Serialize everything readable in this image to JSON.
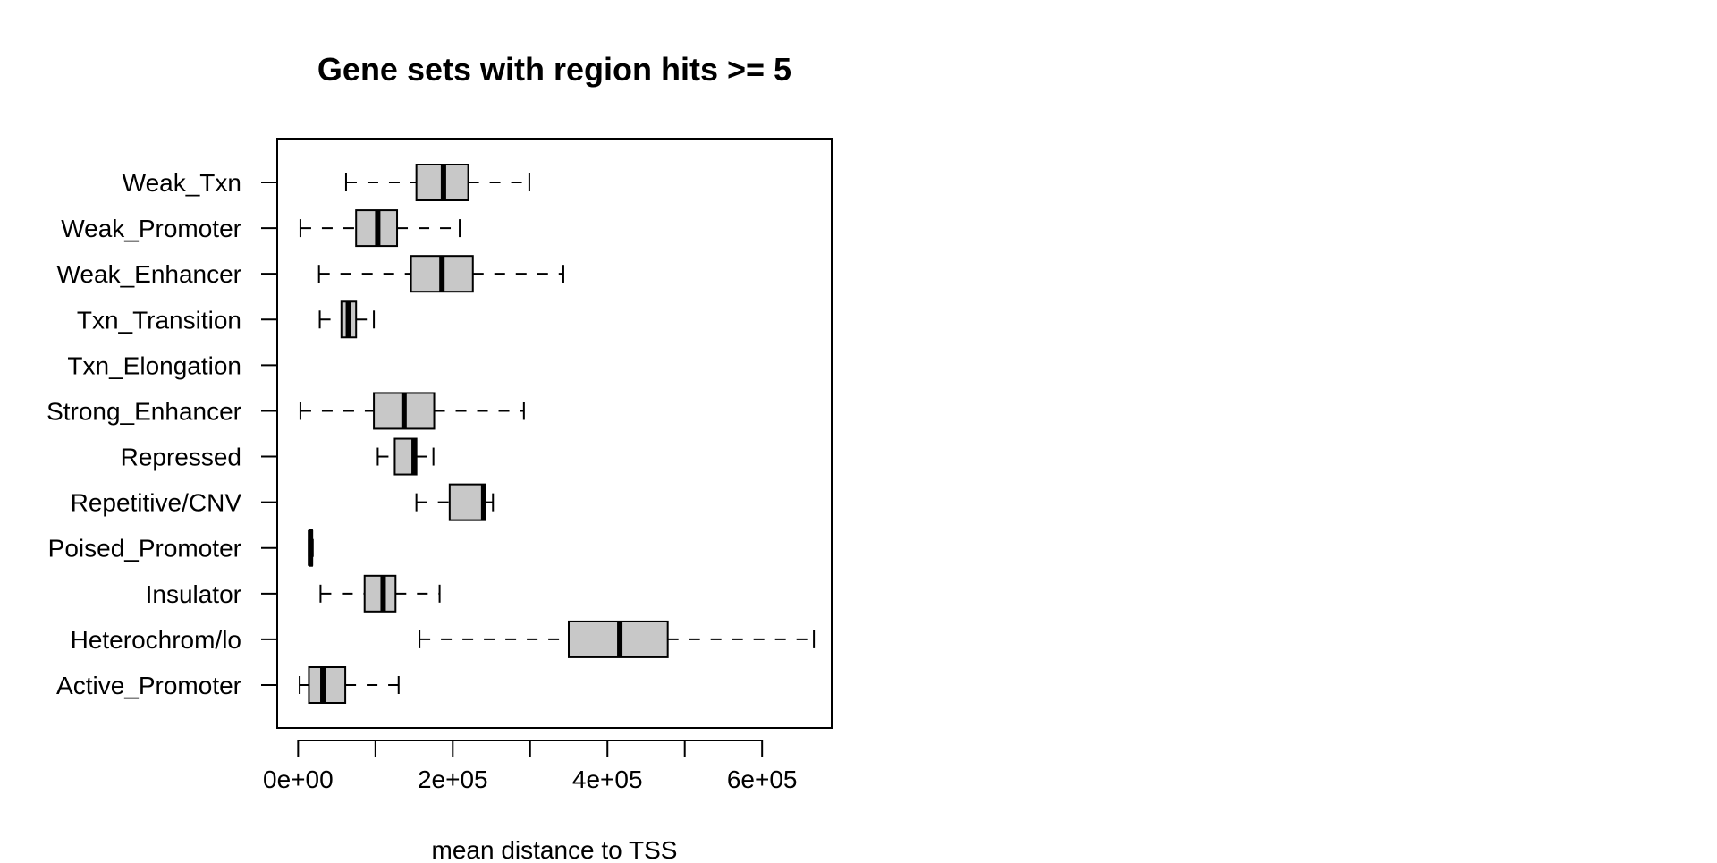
{
  "chart_data": {
    "type": "boxplot",
    "orientation": "horizontal",
    "title": "Gene sets with region hits >= 5",
    "xlabel": "mean distance to TSS",
    "ylabel": "",
    "xlim": [
      -27000,
      690000
    ],
    "x_ticks": [
      0,
      100000,
      200000,
      300000,
      400000,
      500000,
      600000
    ],
    "x_tick_labels": [
      "0e+00",
      "",
      "2e+05",
      "",
      "4e+05",
      "",
      "6e+05"
    ],
    "grid": false,
    "legend": "none",
    "box_fill": "#c8c8c8",
    "categories": [
      "Active_Promoter",
      "Heterochrom/lo",
      "Insulator",
      "Poised_Promoter",
      "Repetitive/CNV",
      "Repressed",
      "Strong_Enhancer",
      "Txn_Elongation",
      "Txn_Transition",
      "Weak_Enhancer",
      "Weak_Promoter",
      "Weak_Txn"
    ],
    "boxes": [
      {
        "min": 2000,
        "q1": 14000,
        "median": 32000,
        "q3": 61000,
        "max": 130000
      },
      {
        "min": 157000,
        "q1": 350000,
        "median": 416000,
        "q3": 478000,
        "max": 667000
      },
      {
        "min": 29000,
        "q1": 86000,
        "median": 110000,
        "q3": 126000,
        "max": 183000
      },
      {
        "min": 14000,
        "q1": 15000,
        "median": 16000,
        "q3": 18000,
        "max": 19000
      },
      {
        "min": 153000,
        "q1": 196000,
        "median": 240000,
        "q3": 242000,
        "max": 252000
      },
      {
        "min": 103000,
        "q1": 125000,
        "median": 150000,
        "q3": 153000,
        "max": 175000
      },
      {
        "min": 3000,
        "q1": 98000,
        "median": 137000,
        "q3": 176000,
        "max": 292000
      },
      null,
      {
        "min": 28000,
        "q1": 56000,
        "median": 65000,
        "q3": 75000,
        "max": 98000
      },
      {
        "min": 27000,
        "q1": 146000,
        "median": 186000,
        "q3": 226000,
        "max": 343000
      },
      {
        "min": 3000,
        "q1": 75000,
        "median": 103000,
        "q3": 128000,
        "max": 209000
      },
      {
        "min": 62000,
        "q1": 153000,
        "median": 188000,
        "q3": 220000,
        "max": 299000
      }
    ]
  }
}
